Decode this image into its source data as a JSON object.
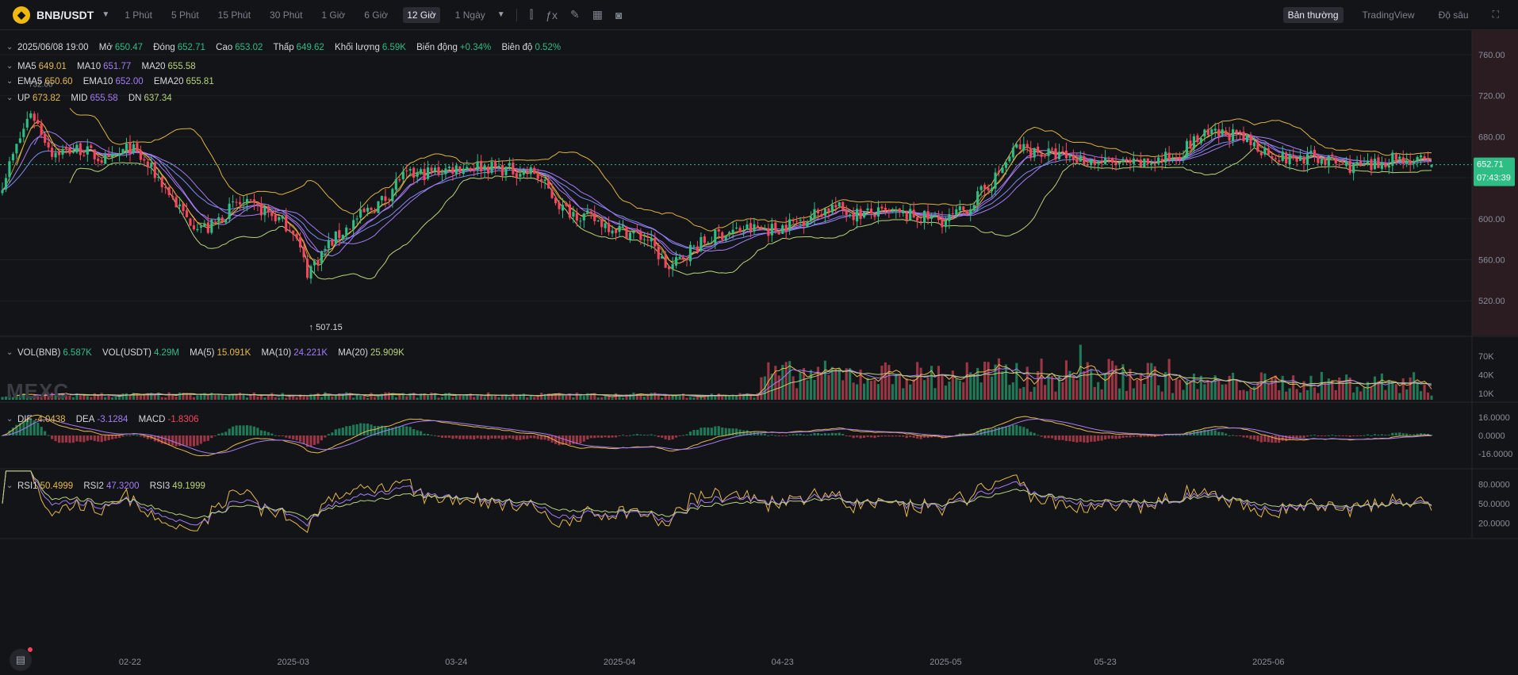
{
  "toolbar": {
    "pair": "BNB/USDT",
    "timeframes": [
      "1 Phút",
      "5 Phút",
      "15 Phút",
      "30 Phút",
      "1 Giờ",
      "6 Giờ",
      "12 Giờ",
      "1 Ngày"
    ],
    "active_timeframe": "12 Giờ",
    "views": [
      "Bản thường",
      "TradingView",
      "Độ sâu"
    ],
    "active_view": "Bản thường"
  },
  "legend": {
    "ohlc": {
      "date": "2025/06/08 19:00",
      "open_label": "Mở",
      "open": "650.47",
      "close_label": "Đóng",
      "close": "652.71",
      "high_label": "Cao",
      "high": "653.02",
      "low_label": "Thấp",
      "low": "649.62",
      "vol_label": "Khối lượng",
      "vol": "6.59K",
      "change_label": "Biến động",
      "change": "+0.34%",
      "amp_label": "Biên độ",
      "amp": "0.52%"
    },
    "ma": {
      "ma5": "649.01",
      "ma10": "651.77",
      "ma20": "655.58"
    },
    "ema": {
      "ema5": "650.60",
      "ema10": "652.00",
      "ema20": "655.81"
    },
    "boll": {
      "up": "673.82",
      "mid": "655.58",
      "dn": "637.34"
    },
    "vol": {
      "vol_bnb": "6.587K",
      "vol_usdt": "4.29M",
      "ma5": "15.091K",
      "ma10": "24.221K",
      "ma20": "25.909K"
    },
    "macd": {
      "dif": "-4.0438",
      "dea": "-3.1284",
      "macd": "-1.8306"
    },
    "rsi": {
      "rsi1": "50.4999",
      "rsi2": "47.3200",
      "rsi3": "49.1999"
    }
  },
  "watermark": "MEXC",
  "chart_data": [
    {
      "type": "candlestick",
      "name": "BNB/USDT 12h",
      "y_axis_ticks": [
        760,
        720,
        680,
        640,
        600,
        560,
        520
      ],
      "y_tick_labels": [
        "760.00",
        "720.00",
        "680.00",
        "640.00",
        "600.00",
        "560.00",
        "520.00"
      ],
      "ylim": [
        490,
        780
      ],
      "x_tick_labels": [
        "02-22",
        "2025-03",
        "03-24",
        "2025-04",
        "04-23",
        "2025-05",
        "05-23",
        "2025-06"
      ],
      "last_price": "652.71",
      "countdown": "07:43:39",
      "max_marker": "732.00",
      "min_marker": "507.15",
      "close_anchors": [
        [
          0,
          635
        ],
        [
          8,
          705
        ],
        [
          14,
          665
        ],
        [
          22,
          668
        ],
        [
          30,
          655
        ],
        [
          36,
          670
        ],
        [
          44,
          640
        ],
        [
          52,
          600
        ],
        [
          58,
          590
        ],
        [
          66,
          615
        ],
        [
          74,
          608
        ],
        [
          82,
          590
        ],
        [
          86,
          548
        ],
        [
          92,
          575
        ],
        [
          100,
          600
        ],
        [
          108,
          620
        ],
        [
          112,
          640
        ],
        [
          120,
          645
        ],
        [
          128,
          650
        ],
        [
          134,
          652
        ],
        [
          142,
          648
        ],
        [
          150,
          645
        ],
        [
          158,
          610
        ],
        [
          166,
          600
        ],
        [
          174,
          590
        ],
        [
          182,
          580
        ],
        [
          188,
          550
        ],
        [
          194,
          570
        ],
        [
          202,
          585
        ],
        [
          210,
          590
        ],
        [
          218,
          590
        ],
        [
          226,
          600
        ],
        [
          234,
          612
        ],
        [
          240,
          605
        ],
        [
          250,
          605
        ],
        [
          258,
          602
        ],
        [
          266,
          598
        ],
        [
          272,
          610
        ],
        [
          280,
          640
        ],
        [
          286,
          670
        ],
        [
          292,
          665
        ],
        [
          300,
          660
        ],
        [
          310,
          655
        ],
        [
          320,
          652
        ],
        [
          330,
          660
        ],
        [
          338,
          680
        ],
        [
          346,
          683
        ],
        [
          354,
          670
        ],
        [
          362,
          658
        ],
        [
          370,
          660
        ],
        [
          378,
          652
        ],
        [
          386,
          650
        ],
        [
          392,
          660
        ],
        [
          400,
          655
        ],
        [
          403,
          653
        ]
      ]
    },
    {
      "type": "bar",
      "name": "Volume",
      "y_axis_ticks": [
        70000,
        40000,
        10000
      ],
      "y_tick_labels": [
        "70K",
        "40K",
        "10K"
      ],
      "last_value": "6.587K"
    },
    {
      "type": "bar",
      "name": "MACD",
      "y_axis_ticks": [
        16,
        0,
        -16
      ],
      "y_tick_labels": [
        "16.0000",
        "0.0000",
        "-16.0000"
      ],
      "last_value": "-1.8306"
    },
    {
      "type": "line",
      "name": "RSI",
      "y_axis_ticks": [
        80,
        50,
        20
      ],
      "y_tick_labels": [
        "80.0000",
        "50.0000",
        "20.0000"
      ],
      "last_value": "50.4999"
    }
  ],
  "colors": {
    "up": "#2ebd85",
    "down": "#f6465d",
    "ma5": "#e7b94c",
    "ma10": "#a57cf4",
    "ma20": "#7c8cf4",
    "boll_up": "#e0b341",
    "boll_mid": "#a57cf4",
    "boll_dn": "#b8d47a",
    "dif": "#e7b94c",
    "dea": "#a57cf4",
    "rsi1": "#e7b94c",
    "rsi2": "#a57cf4",
    "rsi3": "#b8d47a",
    "price_tag": "#2ebd85"
  }
}
